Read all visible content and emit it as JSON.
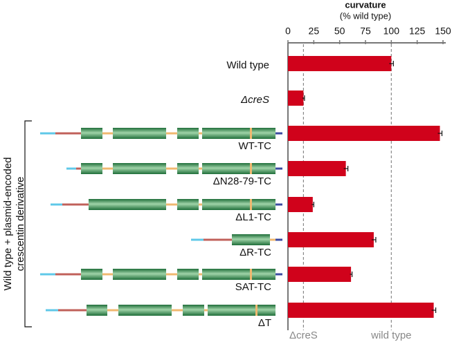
{
  "chart_data": {
    "type": "hbar",
    "title": "curvature",
    "subtitle": "(% wild type)",
    "group_label": [
      "Wild type + plasmid-encoded",
      "crescentin derivative"
    ],
    "categories": [
      "Wild type",
      "ΔcreS",
      "WT-TC",
      "ΔN28-79-TC",
      "ΔL1-TC",
      "ΔR-TC",
      "SAT-TC",
      "ΔT"
    ],
    "values": [
      100,
      15,
      147,
      56,
      24,
      83,
      61,
      141
    ],
    "errors": [
      2,
      1,
      2,
      2,
      1,
      2,
      1,
      2
    ],
    "color": "#d0021b",
    "xlim": [
      0,
      150
    ],
    "xticks": [
      0,
      25,
      50,
      75,
      100,
      125,
      150
    ],
    "reference_lines": [
      {
        "value": 15,
        "label": "ΔcreS"
      },
      {
        "value": 100,
        "label": "wild type"
      }
    ]
  }
}
